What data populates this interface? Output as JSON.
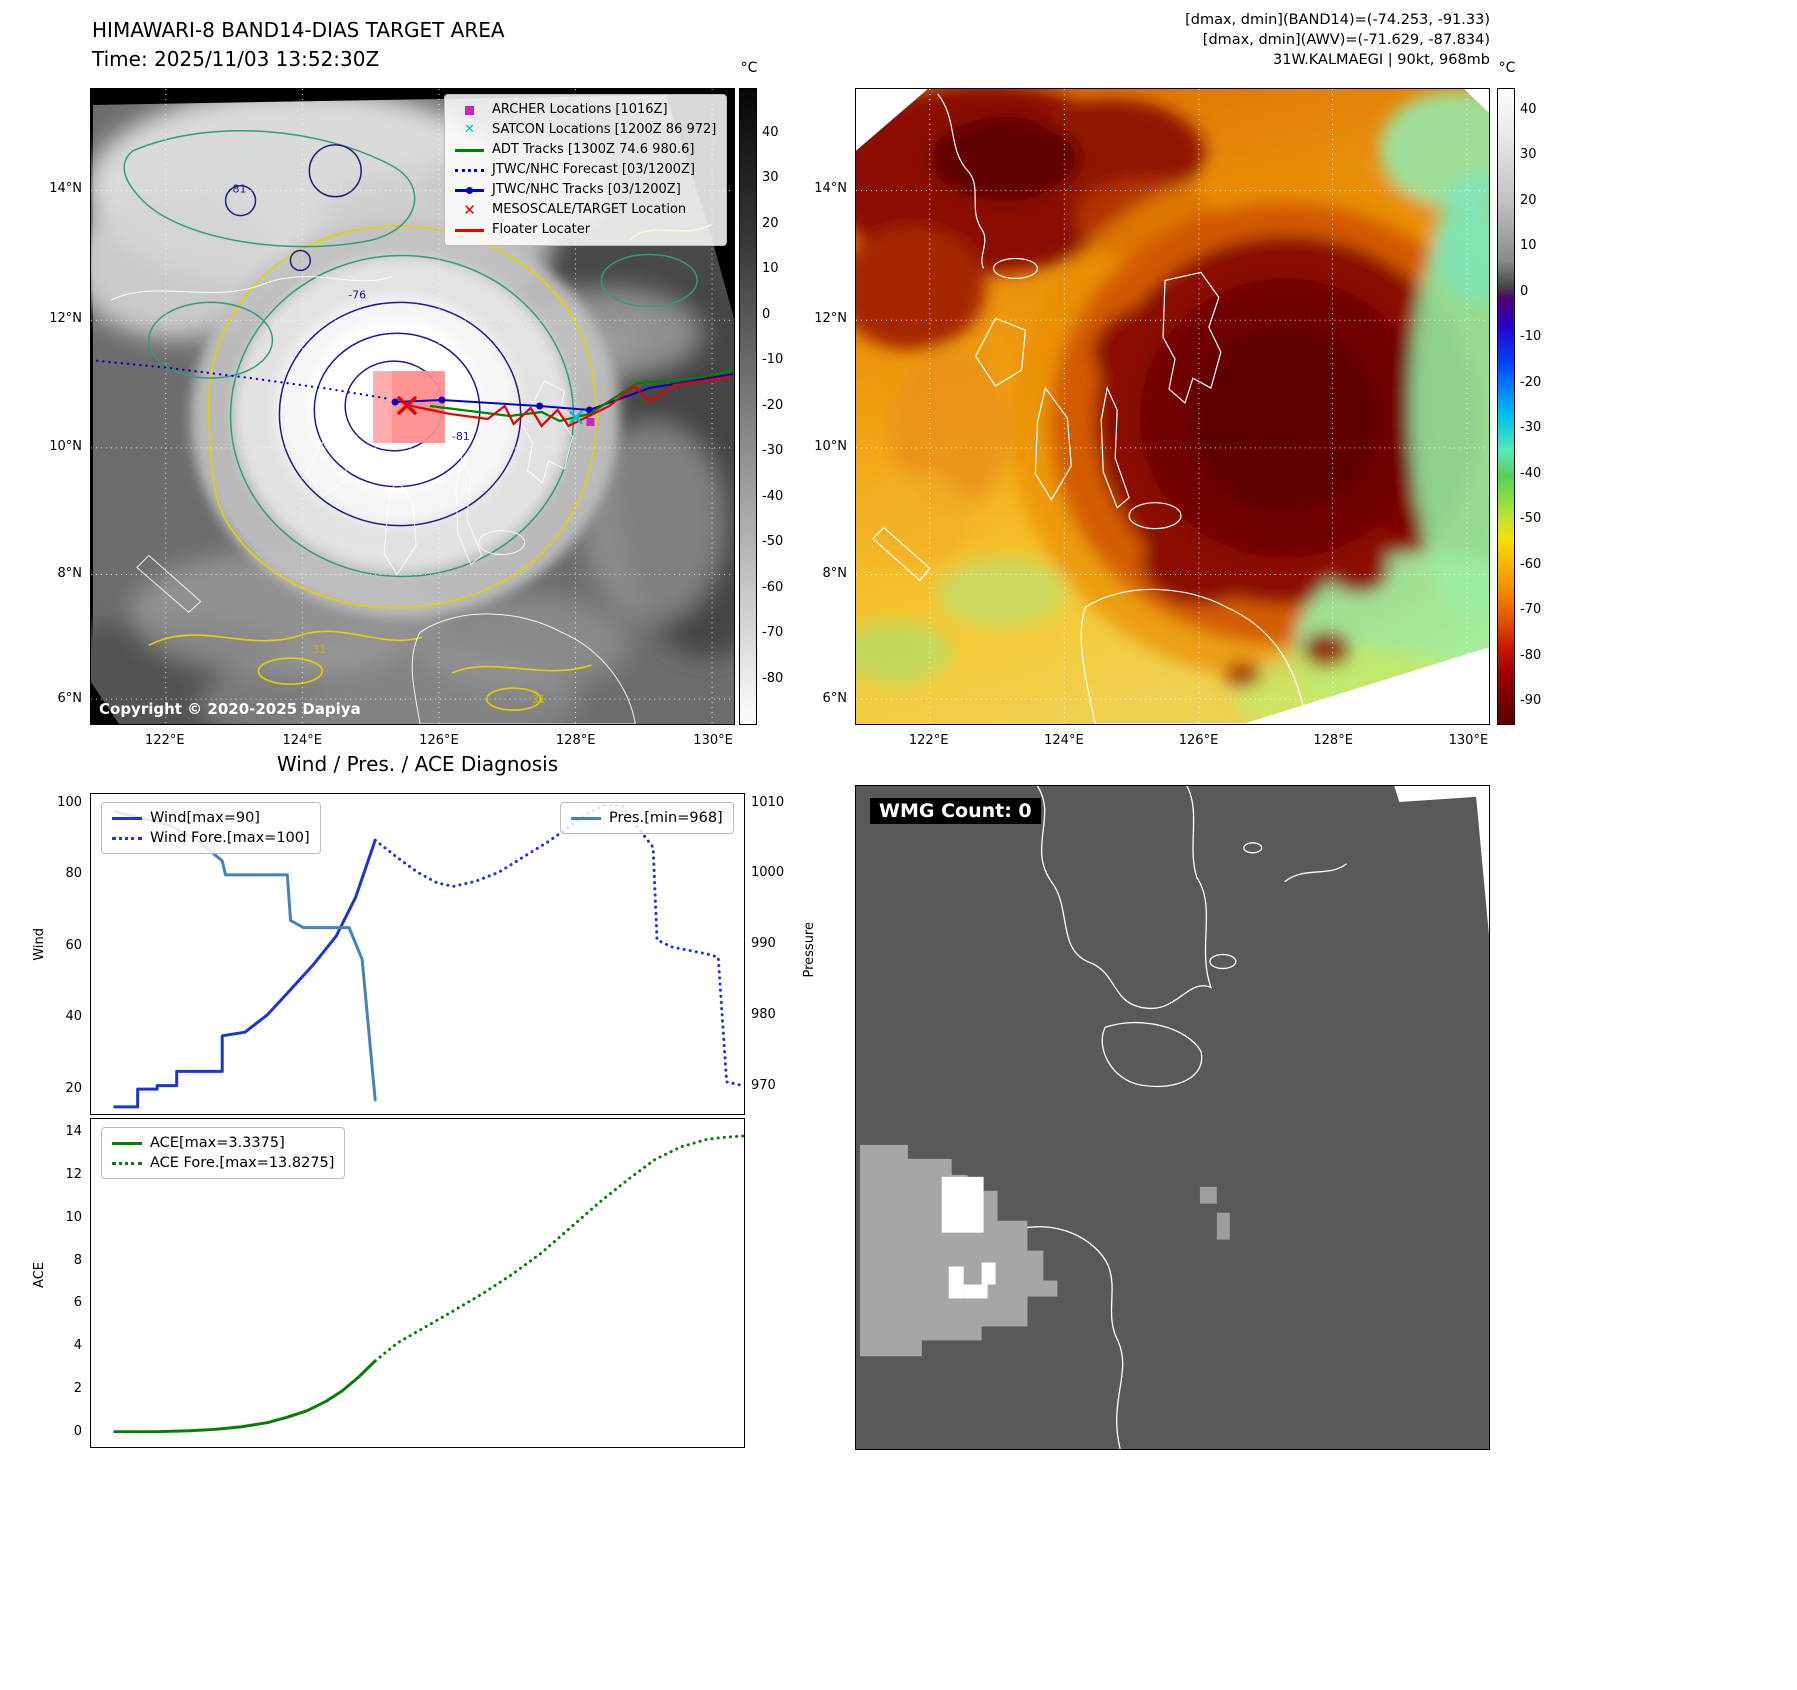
{
  "band14_panel": {
    "title_line1": "HIMAWARI-8 BAND14-DIAS TARGET AREA",
    "title_line2": "Time: 2025/11/03 13:52:30Z",
    "copyright": "Copyright © 2020-2025 Dapiya",
    "colorbar": {
      "unit": "°C",
      "range": [
        -90,
        50
      ],
      "ticks": [
        40,
        30,
        20,
        10,
        0,
        -10,
        -20,
        -30,
        -40,
        -50,
        -60,
        -70,
        -80
      ]
    },
    "x_ticks": [
      "122°E",
      "124°E",
      "126°E",
      "128°E",
      "130°E"
    ],
    "y_ticks": [
      "14°N",
      "12°N",
      "10°N",
      "8°N",
      "6°N"
    ],
    "legend": [
      {
        "label": "ARCHER Locations [1016Z]",
        "marker": "square",
        "color": "#cc22cc"
      },
      {
        "label": "SATCON Locations [1200Z 86 972]",
        "marker": "x",
        "color": "#00b8c8"
      },
      {
        "label": "ADT Tracks [1300Z 74.6 980.6]",
        "marker": "line",
        "color": "#008000"
      },
      {
        "label": "JTWC/NHC Forecast [03/1200Z]",
        "marker": "dotted",
        "color": "#0000cc"
      },
      {
        "label": "JTWC/NHC Tracks [03/1200Z]",
        "marker": "line-dot",
        "color": "#0000cc"
      },
      {
        "label": "MESOSCALE/TARGET Location",
        "marker": "bold-x",
        "color": "#e60000"
      },
      {
        "label": "Floater Locater",
        "marker": "line",
        "color": "#e60000"
      }
    ],
    "contour_labels": {
      "outer": "-76",
      "inner": "-81",
      "low": "31"
    }
  },
  "awv_panel": {
    "header_line1": "[dmax, dmin](BAND14)=(-74.253, -91.33)",
    "header_line2": "[dmax, dmin](AWV)=(-71.629, -87.834)",
    "header_line3": "31W.KALMAEGI | 90kt, 968mb",
    "colorbar": {
      "unit": "°C",
      "range": [
        -95,
        45
      ],
      "ticks": [
        40,
        30,
        20,
        10,
        0,
        -10,
        -20,
        -30,
        -40,
        -50,
        -60,
        -70,
        -80,
        -90
      ]
    },
    "x_ticks": [
      "122°E",
      "124°E",
      "126°E",
      "128°E",
      "130°E"
    ],
    "y_ticks": [
      "14°N",
      "12°N",
      "10°N",
      "8°N",
      "6°N"
    ]
  },
  "wmg_panel": {
    "count_label": "WMG Count: 0"
  },
  "diagnosis": {
    "title": "Wind / Pres. / ACE Diagnosis"
  },
  "chart_data": [
    {
      "id": "wind-pres",
      "type": "line",
      "title": "Wind / Pres. / ACE Diagnosis",
      "x_axis": {
        "range": [
          0,
          1
        ],
        "ticks_visible": false
      },
      "left_axis": {
        "label": "Wind",
        "lim": [
          13,
          103
        ],
        "ticks": [
          20,
          40,
          60,
          80,
          100
        ]
      },
      "right_axis": {
        "label": "Pressure",
        "lim": [
          966,
          1011.5
        ],
        "ticks": [
          970,
          980,
          990,
          1000,
          1010
        ]
      },
      "legend_left": [
        {
          "label": "Wind[max=90]",
          "marker": "line",
          "color": "#1f35cf"
        },
        {
          "label": "Wind Fore.[max=100]",
          "marker": "dotted",
          "color": "#1f35cf"
        }
      ],
      "legend_right": [
        {
          "label": "Pres.[min=968]",
          "marker": "line",
          "color": "#4682b4"
        }
      ],
      "series": [
        {
          "name": "Wind[max=90]",
          "axis": "left",
          "style": "solid",
          "color": "#1f35cf",
          "width": 3,
          "x": [
            0.035,
            0.07,
            0.07,
            0.1,
            0.1,
            0.13,
            0.13,
            0.2,
            0.2,
            0.235,
            0.27,
            0.305,
            0.34,
            0.375,
            0.405,
            0.435
          ],
          "y": [
            15,
            15,
            20,
            20,
            21,
            21,
            25,
            25,
            35,
            36,
            41,
            48,
            55,
            63,
            74,
            90
          ]
        },
        {
          "name": "Wind Fore.[max=100]",
          "axis": "left",
          "style": "dotted",
          "color": "#1f35cf",
          "width": 3,
          "x": [
            0.435,
            0.47,
            0.5,
            0.53,
            0.555,
            0.59,
            0.625,
            0.66,
            0.7,
            0.735,
            0.765,
            0.79,
            0.815,
            0.845,
            0.862,
            0.868,
            0.89,
            0.945,
            0.955,
            0.962,
            0.975,
            1.0
          ],
          "y": [
            90,
            85,
            81,
            78,
            77,
            78.5,
            81,
            85,
            89.5,
            94,
            98,
            100,
            99.5,
            92,
            88,
            62,
            60,
            58,
            57.5,
            57,
            22,
            21
          ]
        },
        {
          "name": "Pres.[min=968]",
          "axis": "right",
          "style": "solid",
          "color": "#4682b4",
          "width": 3,
          "x": [
            0.035,
            0.08,
            0.1,
            0.12,
            0.14,
            0.16,
            0.18,
            0.2,
            0.205,
            0.3,
            0.305,
            0.325,
            0.395,
            0.415,
            0.435
          ],
          "y": [
            1009,
            1008,
            1007.5,
            1007,
            1006,
            1005,
            1003.5,
            1002,
            1000,
            1000,
            993.5,
            992.5,
            992.5,
            988,
            968
          ]
        }
      ]
    },
    {
      "id": "ace",
      "type": "line",
      "x_axis": {
        "range": [
          0,
          1
        ],
        "ticks_visible": false
      },
      "left_axis": {
        "label": "ACE",
        "lim": [
          -0.7,
          14.7
        ],
        "ticks": [
          0,
          2,
          4,
          6,
          8,
          10,
          12,
          14
        ]
      },
      "legend_left": [
        {
          "label": "ACE[max=3.3375]",
          "marker": "line",
          "color": "#077d07"
        },
        {
          "label": "ACE Fore.[max=13.8275]",
          "marker": "dotted",
          "color": "#077d07"
        }
      ],
      "series": [
        {
          "name": "ACE[max=3.3375]",
          "axis": "left",
          "style": "solid",
          "color": "#077d07",
          "width": 3,
          "x": [
            0.035,
            0.1,
            0.15,
            0.19,
            0.23,
            0.27,
            0.3,
            0.33,
            0.36,
            0.385,
            0.41,
            0.435
          ],
          "y": [
            0.02,
            0.02,
            0.06,
            0.13,
            0.25,
            0.45,
            0.7,
            1.0,
            1.45,
            1.95,
            2.6,
            3.34
          ]
        },
        {
          "name": "ACE Fore.[max=13.8275]",
          "axis": "left",
          "style": "dotted",
          "color": "#077d07",
          "width": 3,
          "x": [
            0.435,
            0.47,
            0.51,
            0.55,
            0.6,
            0.645,
            0.69,
            0.735,
            0.78,
            0.825,
            0.865,
            0.905,
            0.945,
            0.975,
            1.0
          ],
          "y": [
            3.34,
            4.2,
            4.9,
            5.6,
            6.5,
            7.4,
            8.4,
            9.6,
            10.8,
            11.9,
            12.8,
            13.4,
            13.75,
            13.85,
            13.9
          ]
        }
      ]
    }
  ]
}
